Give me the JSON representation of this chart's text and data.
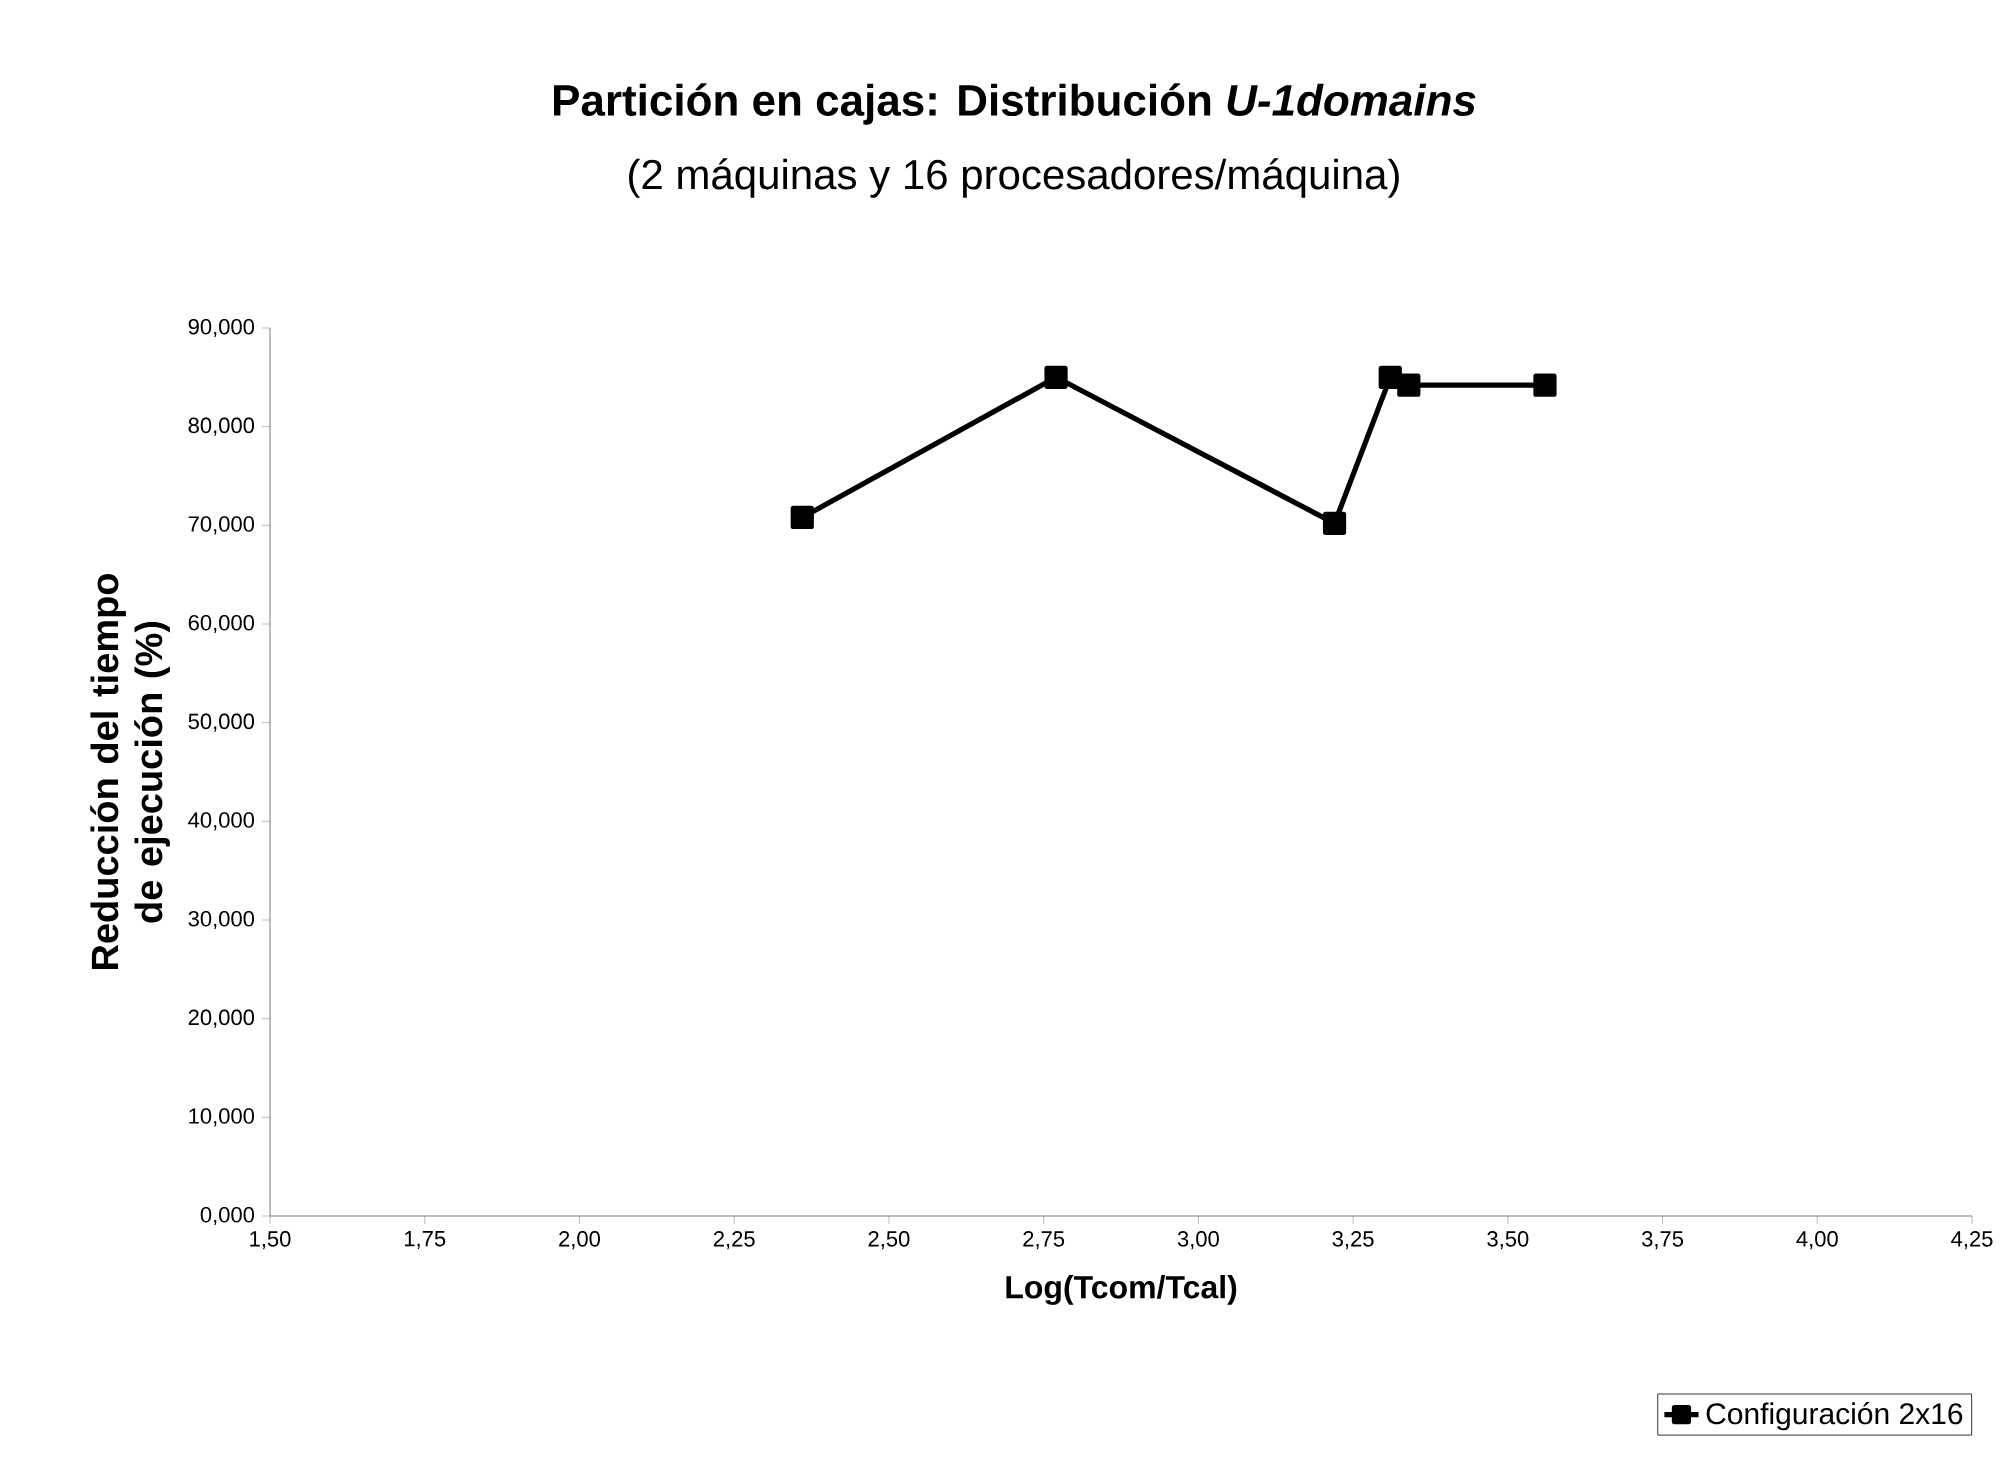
{
  "chart_data": {
    "type": "line",
    "title": "Partición en cajas: Distribución *U-1domains*",
    "subtitle": "(2 máquinas y 16 procesadores/máquina)",
    "xlabel": "Log(Tcom/Tcal)",
    "ylabel": "Reducción del tiempo de ejecución (%)",
    "series": [
      {
        "name": "Configuración 2x16",
        "color": "#000000",
        "x": [
          2.36,
          2.77,
          3.22,
          3.31,
          3.34,
          3.56
        ],
        "values": [
          70.8,
          85.0,
          70.2,
          85.0,
          84.2,
          84.2
        ]
      }
    ],
    "xlim": [
      1.5,
      4.25
    ],
    "ylim": [
      0,
      90
    ],
    "xticks": [
      {
        "value": 1.5,
        "label": "1,50"
      },
      {
        "value": 1.75,
        "label": "1,75"
      },
      {
        "value": 2.0,
        "label": "2,00"
      },
      {
        "value": 2.25,
        "label": "2,25"
      },
      {
        "value": 2.5,
        "label": "2,50"
      },
      {
        "value": 2.75,
        "label": "2,75"
      },
      {
        "value": 3.0,
        "label": "3,00"
      },
      {
        "value": 3.25,
        "label": "3,25"
      },
      {
        "value": 3.5,
        "label": "3,50"
      },
      {
        "value": 3.75,
        "label": "3,75"
      },
      {
        "value": 4.0,
        "label": "4,00"
      },
      {
        "value": 4.25,
        "label": "4,25"
      }
    ],
    "yticks": [
      {
        "value": 0,
        "label": "0,000"
      },
      {
        "value": 10,
        "label": "10,000"
      },
      {
        "value": 20,
        "label": "20,000"
      },
      {
        "value": 30,
        "label": "30,000"
      },
      {
        "value": 40,
        "label": "40,000"
      },
      {
        "value": 50,
        "label": "50,000"
      },
      {
        "value": 60,
        "label": "60,000"
      },
      {
        "value": 70,
        "label": "70,000"
      },
      {
        "value": 80,
        "label": "80,000"
      },
      {
        "value": 90,
        "label": "90,000"
      }
    ],
    "grid": false,
    "legend": "bottom right",
    "marker": "square",
    "line_style": "solid"
  }
}
